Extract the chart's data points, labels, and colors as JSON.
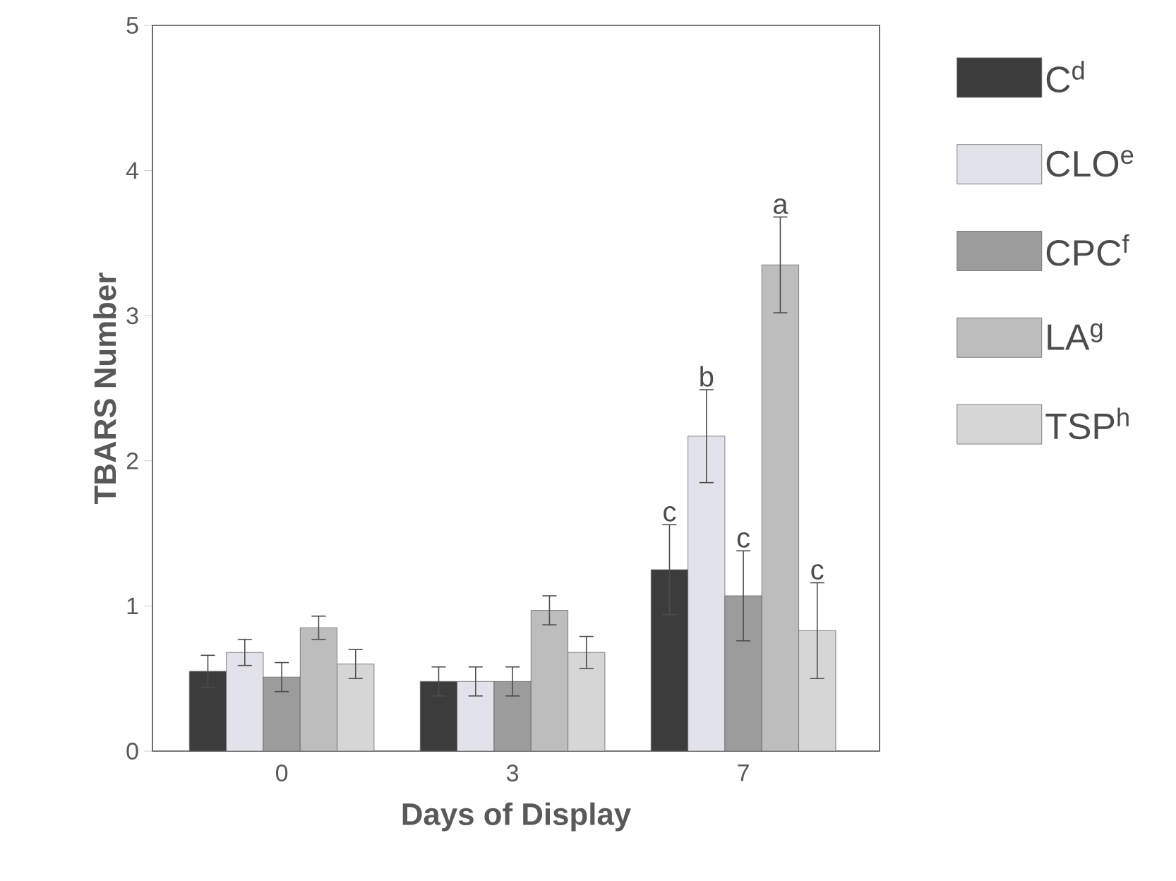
{
  "chart_data": {
    "type": "bar",
    "xlabel": "Days of Display",
    "ylabel": "TBARS Number",
    "categories": [
      "0",
      "3",
      "7"
    ],
    "series": [
      {
        "name": "C$^{d}$",
        "color": "#3c3c3c",
        "values": [
          0.55,
          0.48,
          1.25
        ],
        "errors": [
          0.11,
          0.1,
          0.31
        ]
      },
      {
        "name": "CLO$^{e}$",
        "color": "#e2e2ea",
        "values": [
          0.68,
          0.48,
          2.17
        ],
        "errors": [
          0.09,
          0.1,
          0.32
        ]
      },
      {
        "name": "CPC$^{f}$",
        "color": "#9c9c9c",
        "values": [
          0.51,
          0.48,
          1.07
        ],
        "errors": [
          0.1,
          0.1,
          0.31
        ]
      },
      {
        "name": "LA$^{g}$",
        "color": "#bdbdbd",
        "values": [
          0.85,
          0.97,
          3.35
        ],
        "errors": [
          0.08,
          0.1,
          0.33
        ]
      },
      {
        "name": "TSP$^{h}$",
        "color": "#d6d6d6",
        "values": [
          0.6,
          0.68,
          0.83
        ],
        "errors": [
          0.1,
          0.11,
          0.33
        ]
      }
    ],
    "annotations": [
      "c",
      "b",
      "c",
      "a",
      "c"
    ],
    "ylim": [
      0,
      5
    ],
    "yticks": [
      0,
      1,
      2,
      3,
      4,
      5
    ],
    "grid": false,
    "legend": "right"
  }
}
